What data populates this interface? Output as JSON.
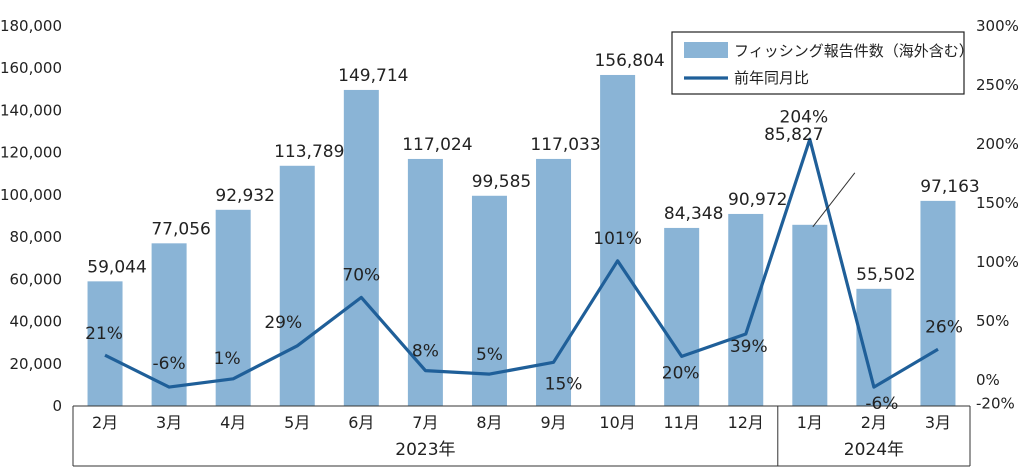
{
  "chart_data": {
    "type": "bar",
    "categories": [
      "2月",
      "3月",
      "4月",
      "5月",
      "6月",
      "7月",
      "8月",
      "9月",
      "10月",
      "11月",
      "12月",
      "1月",
      "2月",
      "3月"
    ],
    "groups": [
      {
        "label": "2023年",
        "count": 11
      },
      {
        "label": "2024年",
        "count": 3
      }
    ],
    "series": [
      {
        "name": "フィッシング報告件数（海外含む）",
        "type": "bar",
        "axis": "left",
        "color": "#8ab4d6",
        "values": [
          59044,
          77056,
          92932,
          113789,
          149714,
          117024,
          99585,
          117033,
          156804,
          84348,
          90972,
          85827,
          55502,
          97163
        ],
        "labels": [
          "59,044",
          "77,056",
          "92,932",
          "113,789",
          "149,714",
          "117,024",
          "99,585",
          "117,033",
          "156,804",
          "84,348",
          "90,972",
          "85,827",
          "55,502",
          "97,163"
        ]
      },
      {
        "name": "前年同月比",
        "type": "line",
        "axis": "right",
        "color": "#1f5f99",
        "values": [
          21,
          -6,
          1,
          29,
          70,
          8,
          5,
          15,
          101,
          20,
          39,
          204,
          -6,
          26
        ],
        "labels": [
          "21%",
          "-6%",
          "1%",
          "29%",
          "70%",
          "8%",
          "5%",
          "15%",
          "101%",
          "20%",
          "39%",
          "204%",
          "-6%",
          "26%"
        ]
      }
    ],
    "y_left": {
      "ylim": [
        0,
        180000
      ],
      "ticks": [
        0,
        20000,
        40000,
        60000,
        80000,
        100000,
        120000,
        140000,
        160000,
        180000
      ],
      "tick_labels": [
        "0",
        "20,000",
        "40,000",
        "60,000",
        "80,000",
        "100,000",
        "120,000",
        "140,000",
        "160,000",
        "180,000"
      ]
    },
    "y_right": {
      "ylim": [
        -20,
        300
      ],
      "ticks": [
        -20,
        0,
        50,
        100,
        150,
        200,
        250,
        300
      ],
      "tick_labels": [
        "-20%",
        "0%",
        "50%",
        "100%",
        "150%",
        "200%",
        "250%",
        "300%"
      ]
    },
    "legend_position": "top-right",
    "grid": false
  }
}
